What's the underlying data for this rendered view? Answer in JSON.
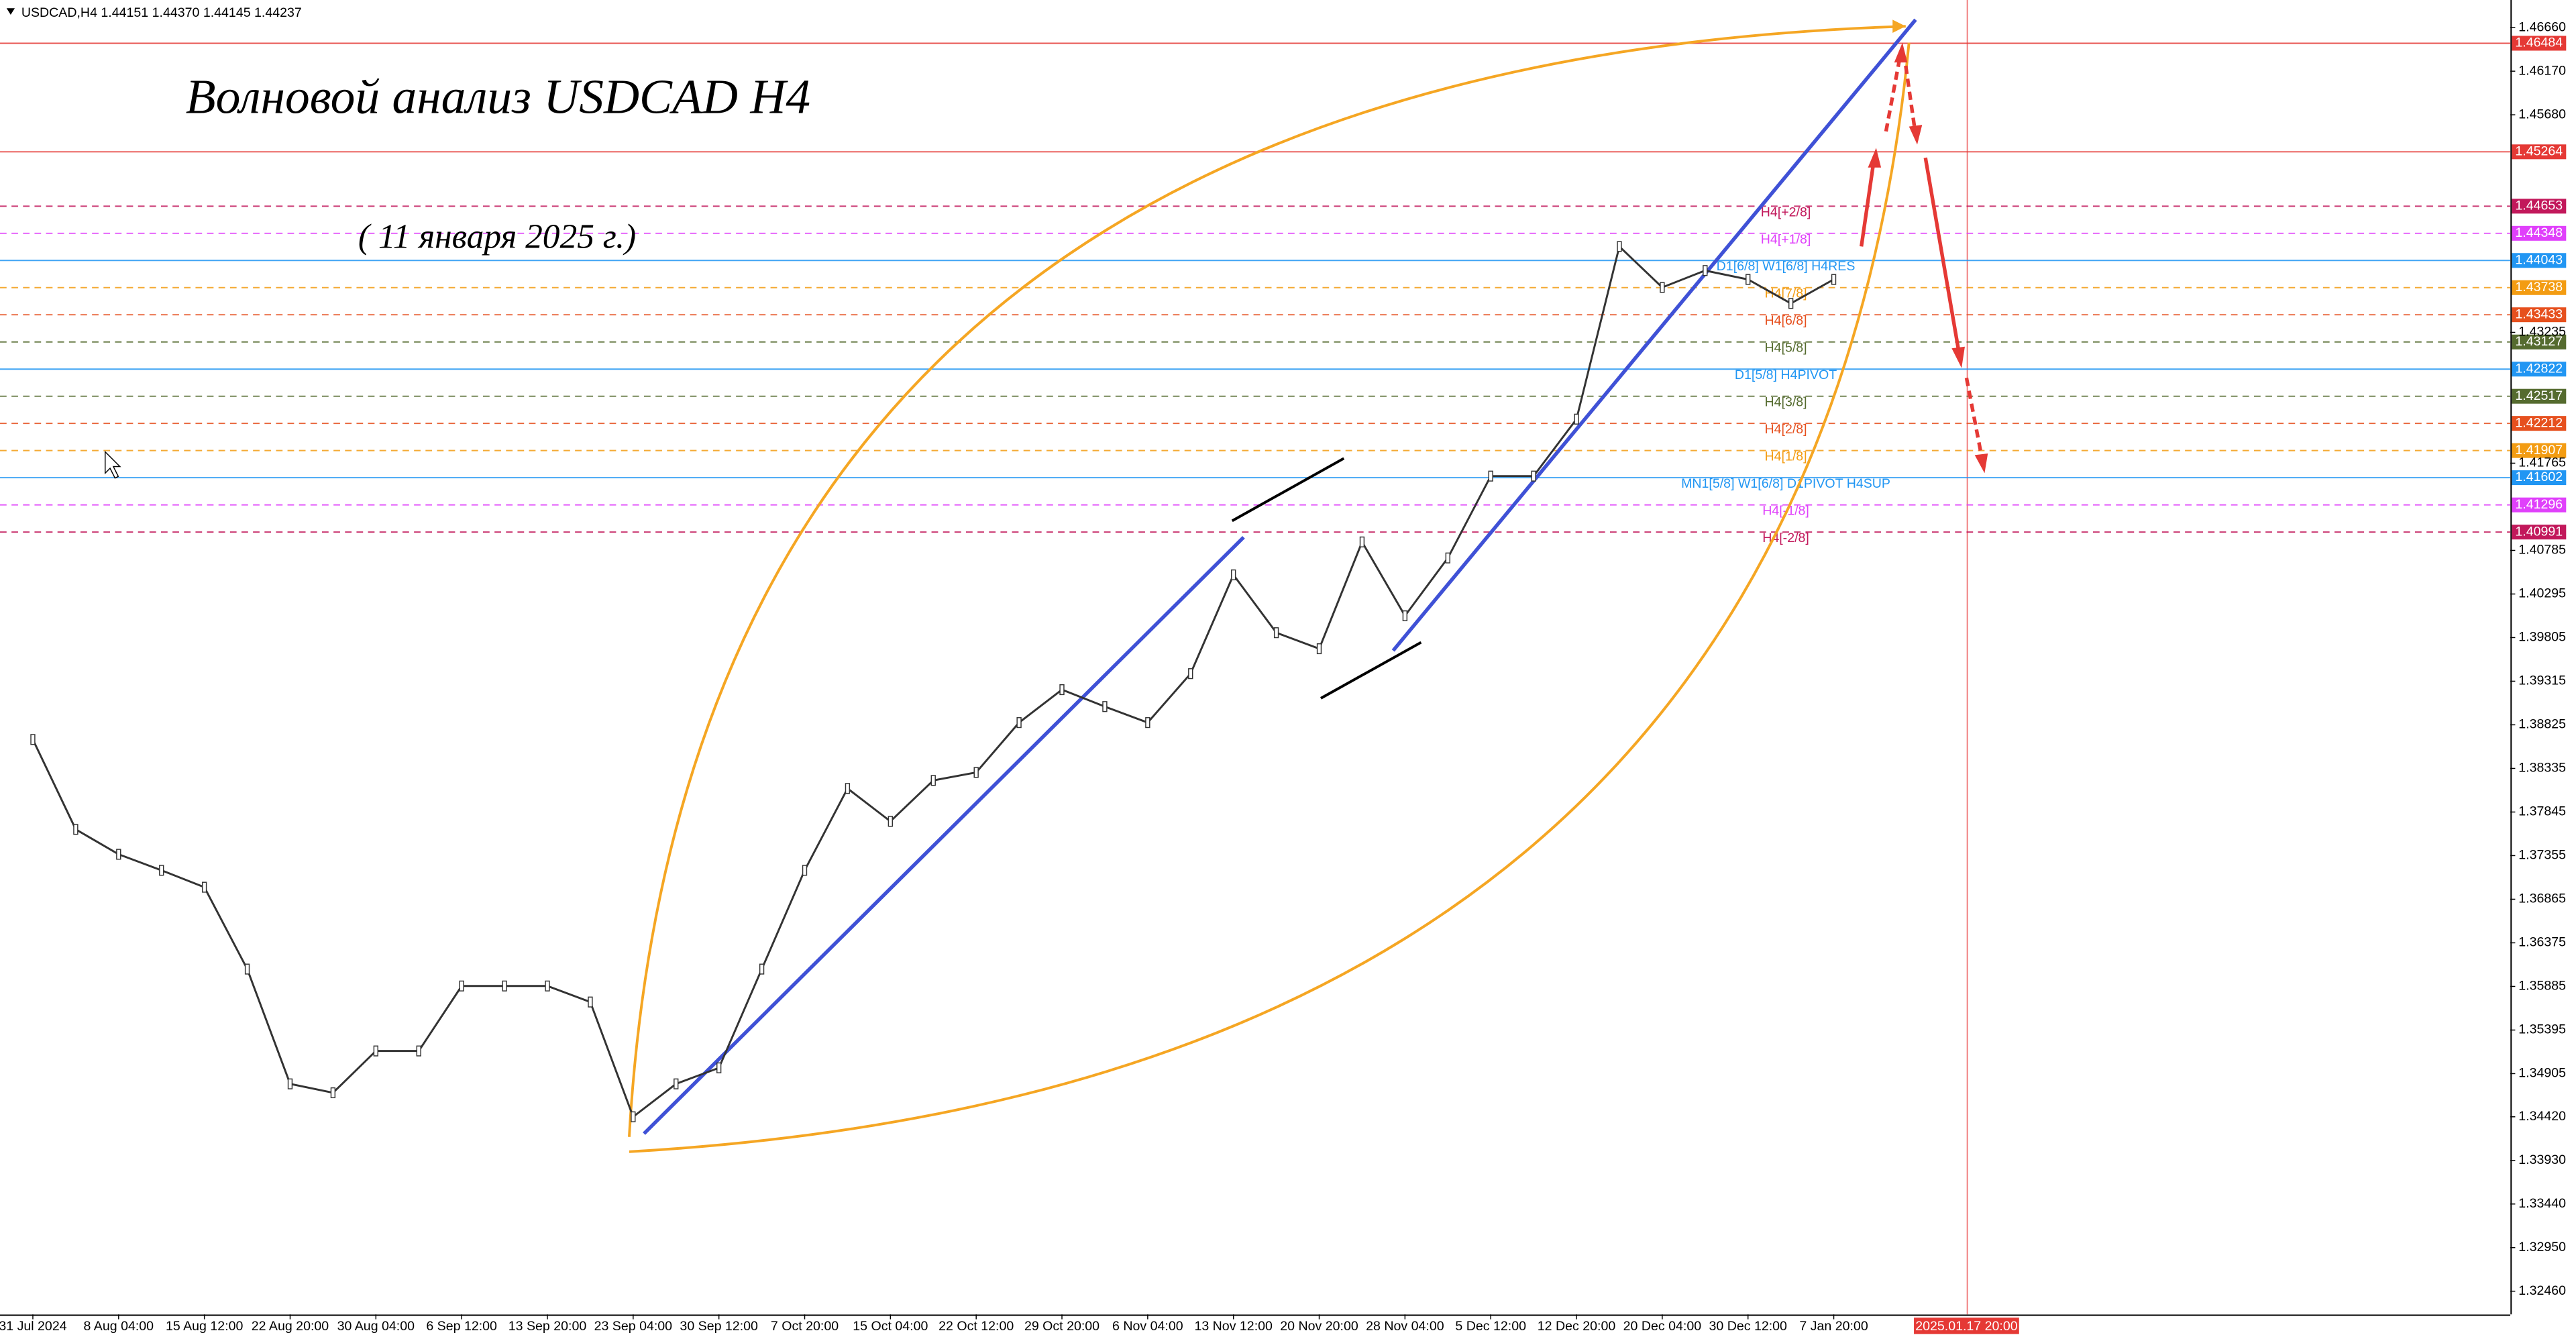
{
  "chart_data": {
    "type": "line",
    "header": "USDCAD,H4  1.44151 1.44370 1.44145 1.44237",
    "title": "Волновой анализ USDCAD H4",
    "subtitle": "( 11 января 2025 г.)",
    "cursor_time": "2025.01.17 20:00",
    "categories": [
      "31 Jul 2024",
      null,
      "8 Aug 04:00",
      null,
      "15 Aug 12:00",
      null,
      "22 Aug 20:00",
      null,
      "30 Aug 04:00",
      null,
      "6 Sep 12:00",
      null,
      "13 Sep 20:00",
      null,
      "23 Sep 04:00",
      null,
      "30 Sep 12:00",
      null,
      "7 Oct 20:00",
      null,
      "15 Oct 04:00",
      null,
      "22 Oct 12:00",
      null,
      "29 Oct 20:00",
      null,
      "6 Nov 04:00",
      null,
      "13 Nov 12:00",
      null,
      "20 Nov 20:00",
      null,
      "28 Nov 04:00",
      null,
      "5 Dec 12:00",
      null,
      "12 Dec 20:00",
      null,
      "20 Dec 04:00",
      null,
      "30 Dec 12:00",
      null,
      "7 Jan 20:00"
    ],
    "series": [
      {
        "name": "USDCAD",
        "color": "#333333",
        "values": [
          1.3866,
          1.3765,
          1.3737,
          1.3719,
          1.37,
          1.3608,
          1.3479,
          1.3469,
          1.3516,
          1.3516,
          1.3589,
          1.3589,
          1.3589,
          1.3571,
          1.3442,
          1.3479,
          1.3497,
          1.3608,
          1.3719,
          1.3811,
          1.3774,
          1.382,
          1.3829,
          1.3885,
          1.3922,
          1.3903,
          1.3885,
          1.394,
          1.4051,
          1.3986,
          1.3968,
          1.4088,
          1.4005,
          1.407,
          1.4162,
          1.4162,
          1.4226,
          1.442,
          1.4374,
          1.4393,
          1.4383,
          1.4356,
          1.4383
        ]
      }
    ],
    "ylim": [
      1.322,
      1.4697
    ],
    "yticks": [
      {
        "value": 1.4666,
        "label": "1.46660"
      },
      {
        "value": 1.4617,
        "label": "1.46170"
      },
      {
        "value": 1.4568,
        "label": "1.45680"
      },
      1.43235,
      1.41765,
      1.40785,
      1.40295,
      1.39805,
      1.39315,
      1.38825,
      1.38335,
      1.37845,
      1.37355,
      1.36865,
      1.36375,
      1.35885,
      1.35395,
      1.34905,
      {
        "value": 1.3442,
        "label": "1.34420"
      },
      {
        "value": 1.3393,
        "label": "1.33930"
      },
      {
        "value": 1.3344,
        "label": "1.33440"
      },
      {
        "value": 1.3295,
        "label": "1.32950"
      },
      {
        "value": 1.3246,
        "label": "1.32460"
      }
    ],
    "levels": [
      {
        "value": 1.46484,
        "color": "#e53935",
        "solid": true
      },
      {
        "value": 1.45264,
        "color": "#e53935",
        "solid": true
      },
      {
        "value": 1.44653,
        "color": "#c2185b",
        "text": "H4[+2/8]"
      },
      {
        "value": 1.44348,
        "color": "#e040fb",
        "text": "H4[+1/8]"
      },
      {
        "value": 1.44043,
        "color": "#2196f3",
        "solid": true,
        "text": "D1[6/8] W1[6/8] H4RES"
      },
      {
        "value": 1.43738,
        "color": "#f39c12",
        "text": "H4[7/8]"
      },
      {
        "value": 1.43433,
        "color": "#e6501e",
        "text": "H4[6/8]"
      },
      {
        "value": 1.43127,
        "color": "#556b2f",
        "text": "H4[5/8]"
      },
      {
        "value": 1.42822,
        "color": "#2196f3",
        "solid": true,
        "text": "D1[5/8] H4PIVOT"
      },
      {
        "value": 1.42517,
        "color": "#556b2f",
        "text": "H4[3/8]"
      },
      {
        "value": 1.42212,
        "color": "#e6501e",
        "text": "H4[2/8]"
      },
      {
        "value": 1.41907,
        "color": "#f39c12",
        "text": "H4[1/8]"
      },
      {
        "value": 1.41602,
        "color": "#2196f3",
        "solid": true,
        "text": "MN1[5/8] W1[6/8] D1PIVOT H4SUP"
      },
      {
        "value": 1.41296,
        "color": "#e040fb",
        "text": "H4[-1/8]"
      },
      {
        "value": 1.40991,
        "color": "#c2185b",
        "text": "H4[-2/8]"
      }
    ],
    "grid": false
  }
}
